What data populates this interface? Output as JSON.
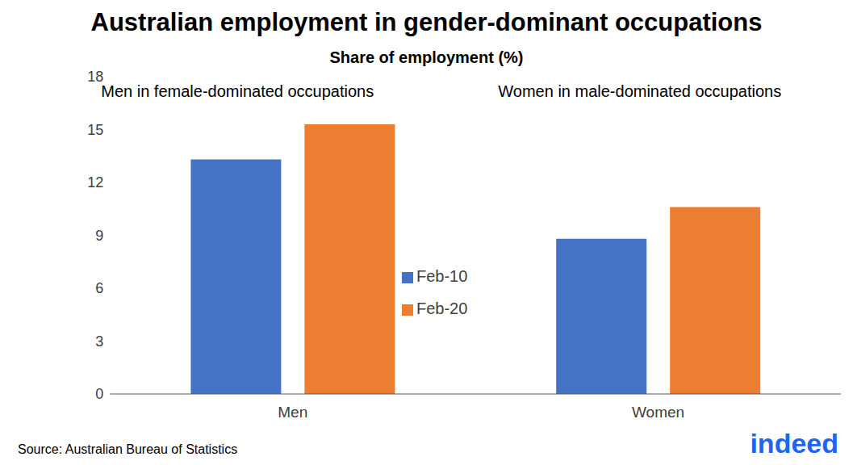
{
  "chart_data": {
    "type": "bar",
    "title": "Australian employment in gender-dominant occupations",
    "subtitle": "Share of employment (%)",
    "categories": [
      "Men",
      "Women"
    ],
    "annotations": [
      "Men in female-dominated occupations",
      "Women in male-dominated occupations"
    ],
    "series": [
      {
        "name": "Feb-10",
        "color": "#4472c4",
        "values": [
          13.3,
          8.8
        ]
      },
      {
        "name": "Feb-20",
        "color": "#ed7d31",
        "values": [
          15.3,
          10.6
        ]
      }
    ],
    "ylim": [
      0,
      18
    ],
    "yticks": [
      0,
      3,
      6,
      9,
      12,
      15,
      18
    ],
    "grid": false,
    "legend": "center",
    "source": "Source: Australian Bureau of Statistics",
    "logo": "indeed"
  }
}
